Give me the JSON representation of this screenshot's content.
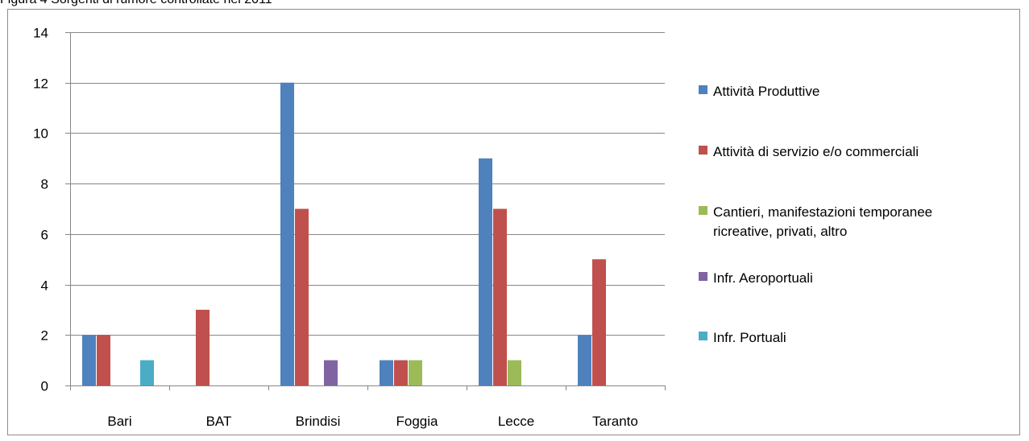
{
  "caption": "Figura 4 Sorgenti di rumore controllate nel 2011",
  "chart_data": {
    "type": "bar",
    "categories": [
      "Bari",
      "BAT",
      "Brindisi",
      "Foggia",
      "Lecce",
      "Taranto"
    ],
    "series": [
      {
        "name": "Attività Produttive",
        "color": "#4f81bd",
        "values": [
          2,
          0,
          12,
          1,
          9,
          2
        ]
      },
      {
        "name": "Attività di servizio e/o commerciali",
        "color": "#c0504d",
        "values": [
          2,
          3,
          7,
          1,
          7,
          5
        ]
      },
      {
        "name": "Cantieri, manifestazioni temporanee ricreative, privati, altro",
        "legend_lines": [
          "Cantieri, manifestazioni temporanee",
          "ricreative, privati, altro"
        ],
        "color": "#9bbb59",
        "values": [
          0,
          0,
          0,
          1,
          1,
          0
        ]
      },
      {
        "name": "Infr. Aeroportuali",
        "color": "#8064a2",
        "values": [
          0,
          0,
          1,
          0,
          0,
          0
        ]
      },
      {
        "name": "Infr. Portuali",
        "color": "#4bacc6",
        "values": [
          1,
          0,
          0,
          0,
          0,
          0
        ]
      }
    ],
    "ylim": [
      0,
      14
    ],
    "yticks": [
      0,
      2,
      4,
      6,
      8,
      10,
      12,
      14
    ],
    "grid": true,
    "legend_position": "right",
    "title": "",
    "xlabel": "",
    "ylabel": ""
  }
}
